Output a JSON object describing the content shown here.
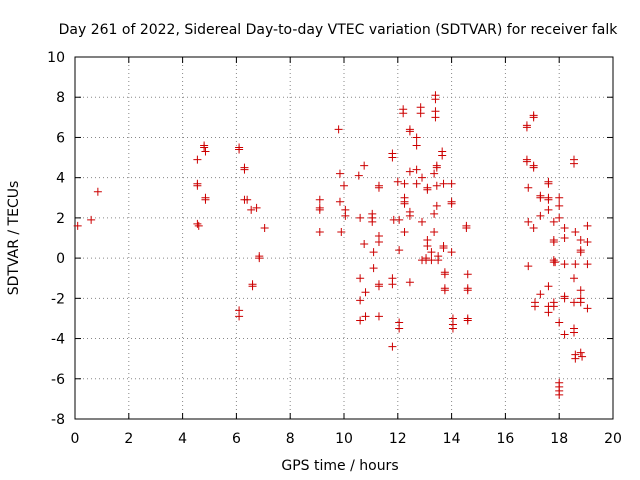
{
  "chart_data": {
    "type": "scatter",
    "title": "Day 261 of 2022, Sidereal Day-to-day VTEC variation (SDTVAR) for receiver falk",
    "xlabel": "GPS time / hours",
    "ylabel": "SDTVAR / TECUs",
    "xlim": [
      0,
      20
    ],
    "ylim": [
      -8,
      10
    ],
    "xticks": [
      "0",
      "2",
      "4",
      "6",
      "8",
      "10",
      "12",
      "14",
      "16",
      "18",
      "20"
    ],
    "yticks": [
      "-8",
      "-6",
      "-4",
      "-2",
      "0",
      "2",
      "4",
      "6",
      "8",
      "10"
    ],
    "marker": "plus",
    "color": "#cc0000",
    "grid": true,
    "series": [
      {
        "name": "SDTVAR",
        "points": [
          [
            0.1,
            1.6
          ],
          [
            0.6,
            1.9
          ],
          [
            0.85,
            3.3
          ],
          [
            4.55,
            4.9
          ],
          [
            4.55,
            3.7
          ],
          [
            4.55,
            3.6
          ],
          [
            4.55,
            1.7
          ],
          [
            4.6,
            1.6
          ],
          [
            4.8,
            5.6
          ],
          [
            4.8,
            5.5
          ],
          [
            4.85,
            5.3
          ],
          [
            4.85,
            3.0
          ],
          [
            4.85,
            2.9
          ],
          [
            6.1,
            5.5
          ],
          [
            6.1,
            5.4
          ],
          [
            6.1,
            -2.6
          ],
          [
            6.1,
            -2.9
          ],
          [
            6.3,
            4.5
          ],
          [
            6.3,
            4.4
          ],
          [
            6.3,
            2.9
          ],
          [
            6.4,
            2.9
          ],
          [
            6.55,
            2.4
          ],
          [
            6.6,
            -1.3
          ],
          [
            6.6,
            -1.4
          ],
          [
            6.75,
            2.5
          ],
          [
            6.85,
            0.1
          ],
          [
            6.85,
            0.0
          ],
          [
            7.05,
            1.5
          ],
          [
            9.1,
            2.9
          ],
          [
            9.1,
            2.5
          ],
          [
            9.1,
            2.4
          ],
          [
            9.1,
            1.3
          ],
          [
            9.8,
            6.4
          ],
          [
            9.85,
            4.2
          ],
          [
            9.85,
            2.8
          ],
          [
            9.9,
            1.3
          ],
          [
            10.0,
            3.6
          ],
          [
            10.05,
            2.4
          ],
          [
            10.05,
            2.1
          ],
          [
            10.55,
            4.1
          ],
          [
            10.6,
            2.0
          ],
          [
            10.6,
            -1.0
          ],
          [
            10.6,
            -2.1
          ],
          [
            10.6,
            -3.1
          ],
          [
            10.75,
            4.6
          ],
          [
            10.75,
            0.7
          ],
          [
            10.8,
            -1.7
          ],
          [
            10.8,
            -2.9
          ],
          [
            11.05,
            2.2
          ],
          [
            11.05,
            2.0
          ],
          [
            11.05,
            1.8
          ],
          [
            11.1,
            0.3
          ],
          [
            11.1,
            -0.5
          ],
          [
            11.3,
            3.6
          ],
          [
            11.3,
            3.5
          ],
          [
            11.3,
            1.1
          ],
          [
            11.3,
            0.8
          ],
          [
            11.3,
            -1.3
          ],
          [
            11.3,
            -1.4
          ],
          [
            11.3,
            -2.9
          ],
          [
            11.8,
            5.2
          ],
          [
            11.8,
            5.0
          ],
          [
            11.8,
            -1.0
          ],
          [
            11.8,
            -1.3
          ],
          [
            11.8,
            -4.4
          ],
          [
            11.85,
            1.9
          ],
          [
            12.0,
            3.8
          ],
          [
            12.05,
            1.9
          ],
          [
            12.05,
            0.4
          ],
          [
            12.05,
            -3.2
          ],
          [
            12.05,
            -3.5
          ],
          [
            12.2,
            7.4
          ],
          [
            12.2,
            7.2
          ],
          [
            12.25,
            3.7
          ],
          [
            12.25,
            3.0
          ],
          [
            12.25,
            2.8
          ],
          [
            12.25,
            2.7
          ],
          [
            12.25,
            1.3
          ],
          [
            12.45,
            6.4
          ],
          [
            12.45,
            6.3
          ],
          [
            12.45,
            4.3
          ],
          [
            12.45,
            2.3
          ],
          [
            12.45,
            2.1
          ],
          [
            12.45,
            -1.2
          ],
          [
            12.7,
            6.0
          ],
          [
            12.7,
            5.6
          ],
          [
            12.7,
            4.4
          ],
          [
            12.7,
            3.7
          ],
          [
            12.85,
            7.5
          ],
          [
            12.85,
            7.2
          ],
          [
            12.9,
            4.0
          ],
          [
            12.9,
            1.8
          ],
          [
            12.9,
            -0.1
          ],
          [
            13.05,
            -0.1
          ],
          [
            13.05,
            0.0
          ],
          [
            13.1,
            3.5
          ],
          [
            13.1,
            3.4
          ],
          [
            13.1,
            0.9
          ],
          [
            13.1,
            0.6
          ],
          [
            13.25,
            0.3
          ],
          [
            13.25,
            -0.1
          ],
          [
            13.35,
            4.2
          ],
          [
            13.35,
            2.2
          ],
          [
            13.35,
            1.3
          ],
          [
            13.4,
            8.1
          ],
          [
            13.4,
            7.9
          ],
          [
            13.4,
            7.3
          ],
          [
            13.4,
            7.0
          ],
          [
            13.45,
            4.6
          ],
          [
            13.45,
            4.5
          ],
          [
            13.45,
            3.6
          ],
          [
            13.45,
            2.6
          ],
          [
            13.5,
            0.1
          ],
          [
            13.5,
            -0.1
          ],
          [
            13.65,
            5.3
          ],
          [
            13.65,
            5.1
          ],
          [
            13.7,
            3.7
          ],
          [
            13.7,
            0.6
          ],
          [
            13.7,
            0.5
          ],
          [
            13.75,
            -0.7
          ],
          [
            13.75,
            -0.8
          ],
          [
            13.75,
            -1.5
          ],
          [
            13.75,
            -1.6
          ],
          [
            14.0,
            3.7
          ],
          [
            14.0,
            2.8
          ],
          [
            14.0,
            2.7
          ],
          [
            14.0,
            0.3
          ],
          [
            14.05,
            -3.0
          ],
          [
            14.05,
            -3.3
          ],
          [
            14.05,
            -3.5
          ],
          [
            14.55,
            1.6
          ],
          [
            14.55,
            1.5
          ],
          [
            14.6,
            -0.8
          ],
          [
            14.6,
            -1.5
          ],
          [
            14.6,
            -1.6
          ],
          [
            14.6,
            -3.0
          ],
          [
            14.6,
            -3.1
          ],
          [
            16.8,
            6.6
          ],
          [
            16.8,
            6.5
          ],
          [
            16.8,
            4.9
          ],
          [
            16.8,
            4.8
          ],
          [
            16.85,
            3.5
          ],
          [
            16.85,
            1.8
          ],
          [
            16.85,
            -0.4
          ],
          [
            17.05,
            7.1
          ],
          [
            17.05,
            7.0
          ],
          [
            17.05,
            4.6
          ],
          [
            17.05,
            4.5
          ],
          [
            17.05,
            1.5
          ],
          [
            17.1,
            -2.2
          ],
          [
            17.1,
            -2.4
          ],
          [
            17.3,
            3.1
          ],
          [
            17.3,
            3.0
          ],
          [
            17.3,
            2.1
          ],
          [
            17.3,
            -1.8
          ],
          [
            17.6,
            3.8
          ],
          [
            17.6,
            3.7
          ],
          [
            17.6,
            3.0
          ],
          [
            17.6,
            2.9
          ],
          [
            17.6,
            2.4
          ],
          [
            17.6,
            -1.4
          ],
          [
            17.6,
            -2.4
          ],
          [
            17.6,
            -2.7
          ],
          [
            17.8,
            1.8
          ],
          [
            17.8,
            0.9
          ],
          [
            17.8,
            0.8
          ],
          [
            17.8,
            -0.1
          ],
          [
            17.8,
            -0.2
          ],
          [
            17.8,
            -2.2
          ],
          [
            17.8,
            -2.4
          ],
          [
            17.85,
            -0.2
          ],
          [
            18.0,
            3.0
          ],
          [
            18.0,
            2.6
          ],
          [
            18.0,
            2.0
          ],
          [
            18.0,
            -3.2
          ],
          [
            18.0,
            -6.2
          ],
          [
            18.0,
            -6.4
          ],
          [
            18.0,
            -6.6
          ],
          [
            18.0,
            -6.8
          ],
          [
            18.2,
            1.5
          ],
          [
            18.2,
            1.0
          ],
          [
            18.2,
            -0.3
          ],
          [
            18.2,
            -1.9
          ],
          [
            18.2,
            -2.0
          ],
          [
            18.2,
            -3.8
          ],
          [
            18.55,
            4.9
          ],
          [
            18.55,
            4.7
          ],
          [
            18.55,
            -1.0
          ],
          [
            18.55,
            -2.2
          ],
          [
            18.55,
            -3.5
          ],
          [
            18.55,
            -3.7
          ],
          [
            18.6,
            1.3
          ],
          [
            18.6,
            -0.3
          ],
          [
            18.6,
            -4.8
          ],
          [
            18.6,
            -5.0
          ],
          [
            18.8,
            0.9
          ],
          [
            18.8,
            0.4
          ],
          [
            18.8,
            0.3
          ],
          [
            18.8,
            -1.6
          ],
          [
            18.8,
            -2.0
          ],
          [
            18.8,
            -2.2
          ],
          [
            18.8,
            -4.7
          ],
          [
            18.85,
            -4.9
          ],
          [
            19.05,
            1.6
          ],
          [
            19.05,
            0.8
          ],
          [
            19.05,
            -0.3
          ],
          [
            19.05,
            -2.5
          ]
        ]
      }
    ]
  }
}
